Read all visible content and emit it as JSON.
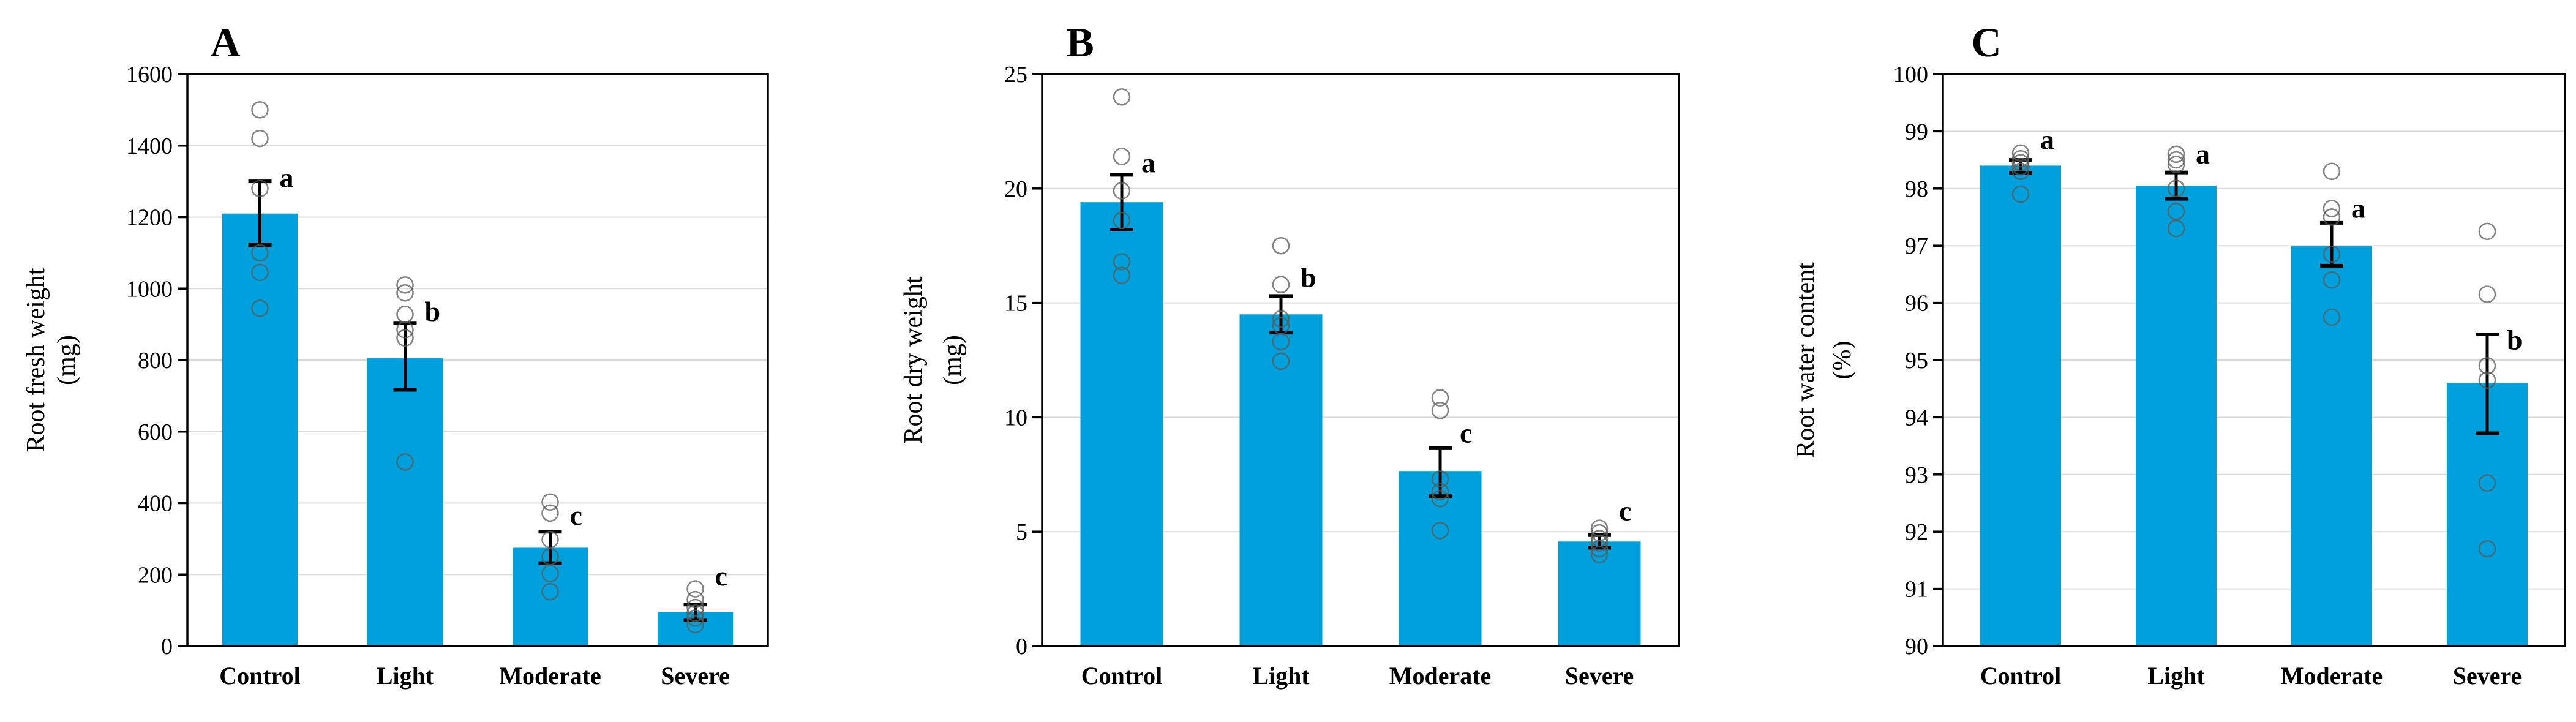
{
  "style": {
    "bar_color": "#00A0DC",
    "grid_color": "#D9D9D9",
    "axis_color": "#000000",
    "point_stroke": "#595959",
    "error_color": "#000000"
  },
  "chart_data": [
    {
      "type": "bar",
      "panel_label": "A",
      "ylabel": "Root fresh weight",
      "ylabel_unit": "(mg)",
      "ylim": [
        0,
        1600
      ],
      "ytick_step": 200,
      "grid": "horizontal",
      "legend": "none",
      "categories": [
        "Control",
        "Light",
        "Moderate",
        "Severe"
      ],
      "series": [
        {
          "name": "mean",
          "values": [
            1210,
            805,
            275,
            95
          ]
        }
      ],
      "error_low": [
        1122,
        717,
        232,
        73
      ],
      "error_high": [
        1300,
        904,
        320,
        116
      ],
      "scatter_points": [
        [
          1500,
          1420,
          1280,
          1100,
          1045,
          945
        ],
        [
          1010,
          988,
          928,
          885,
          862,
          515
        ],
        [
          403,
          372,
          298,
          250,
          203,
          152
        ],
        [
          160,
          130,
          108,
          92,
          78,
          60
        ]
      ],
      "sig_letters": [
        "a",
        "b",
        "c",
        "c"
      ],
      "sig_letter_y": [
        1310,
        935,
        365,
        195
      ]
    },
    {
      "type": "bar",
      "panel_label": "B",
      "ylabel": "Root dry weight",
      "ylabel_unit": "(mg)",
      "ylim": [
        0,
        25
      ],
      "ytick_step": 5,
      "grid": "horizontal",
      "legend": "none",
      "categories": [
        "Control",
        "Light",
        "Moderate",
        "Severe"
      ],
      "series": [
        {
          "name": "mean",
          "values": [
            19.4,
            14.5,
            7.65,
            4.57
          ]
        }
      ],
      "error_low": [
        18.2,
        13.7,
        6.55,
        4.3
      ],
      "error_high": [
        20.6,
        15.3,
        8.65,
        4.85
      ],
      "scatter_points": [
        [
          24.0,
          21.4,
          19.9,
          18.6,
          16.8,
          16.2
        ],
        [
          17.5,
          15.8,
          14.3,
          14.0,
          13.3,
          12.45
        ],
        [
          10.85,
          10.3,
          7.3,
          6.75,
          6.45,
          5.05
        ],
        [
          5.15,
          4.95,
          4.7,
          4.5,
          4.25,
          4.0
        ]
      ],
      "sig_letters": [
        "a",
        "b",
        "c",
        "c"
      ],
      "sig_letter_y": [
        21.1,
        16.1,
        9.3,
        5.9
      ]
    },
    {
      "type": "bar",
      "panel_label": "C",
      "ylabel": "Root water content",
      "ylabel_unit": "(%)",
      "ylim": [
        90,
        100
      ],
      "ytick_step": 1,
      "grid": "horizontal",
      "legend": "none",
      "categories": [
        "Control",
        "Light",
        "Moderate",
        "Severe"
      ],
      "series": [
        {
          "name": "mean",
          "values": [
            98.4,
            98.05,
            97.0,
            94.6
          ]
        }
      ],
      "error_low": [
        98.27,
        97.82,
        96.65,
        93.72
      ],
      "error_high": [
        98.5,
        98.28,
        97.4,
        95.45
      ],
      "scatter_points": [
        [
          98.62,
          98.52,
          98.45,
          98.38,
          98.3,
          97.9
        ],
        [
          98.6,
          98.5,
          98.42,
          98.0,
          97.6,
          97.3
        ],
        [
          98.3,
          97.65,
          97.5,
          96.85,
          96.4,
          95.75
        ],
        [
          97.25,
          96.15,
          94.9,
          94.65,
          92.85,
          91.7
        ]
      ],
      "sig_letters": [
        "a",
        "a",
        "a",
        "b"
      ],
      "sig_letter_y": [
        98.85,
        98.6,
        97.65,
        95.35
      ]
    }
  ]
}
